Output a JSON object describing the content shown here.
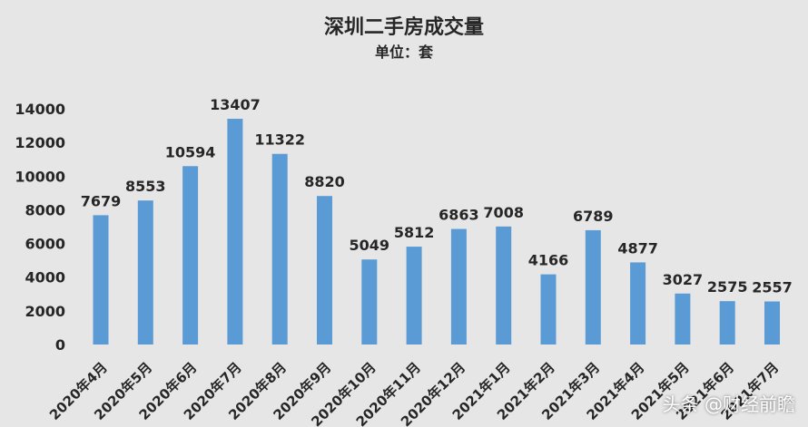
{
  "title": "深圳二手房成交量",
  "subtitle": "单位：套",
  "watermark": "头条 @财经前瞻",
  "chart_data": {
    "type": "bar",
    "title": "深圳二手房成交量",
    "subtitle": "单位：套",
    "categories": [
      "2020年4月",
      "2020年5月",
      "2020年6月",
      "2020年7月",
      "2020年8月",
      "2020年9月",
      "2020年10月",
      "2020年11月",
      "2020年12月",
      "2021年1月",
      "2021年2月",
      "2021年3月",
      "2021年4月",
      "2021年5月",
      "2021年6月",
      "2021年7月"
    ],
    "values": [
      7679,
      8553,
      10594,
      13407,
      11322,
      8820,
      5049,
      5812,
      6863,
      7008,
      4166,
      6789,
      4877,
      3027,
      2575,
      2557
    ],
    "yticks": [
      0,
      2000,
      4000,
      6000,
      8000,
      10000,
      12000,
      14000
    ],
    "ylim": [
      0,
      14000
    ],
    "grid": false,
    "bar_color": "#5b9bd5",
    "data_labels": true
  }
}
